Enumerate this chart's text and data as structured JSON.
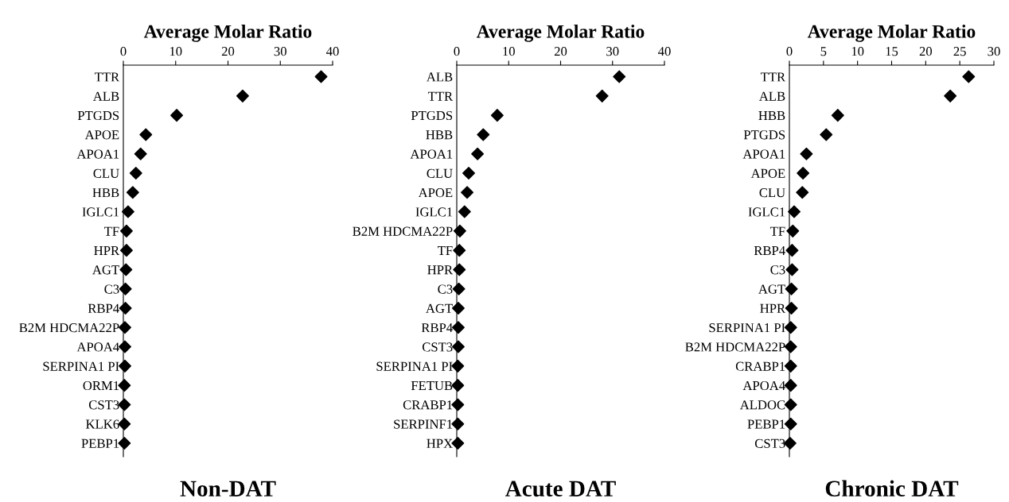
{
  "chart_data": [
    {
      "type": "scatter",
      "orientation": "horizontal",
      "title": "Non-DAT",
      "xlabel": "Average Molar Ratio",
      "marker": "diamond",
      "color": "#000000",
      "xlim": [
        0,
        40
      ],
      "xticks": [
        0,
        10,
        20,
        30,
        40
      ],
      "categories": [
        "TTR",
        "ALB",
        "PTGDS",
        "APOE",
        "APOA1",
        "CLU",
        "HBB",
        "IGLC1",
        "TF",
        "HPR",
        "AGT",
        "C3",
        "RBP4",
        "B2M HDCMA22P",
        "APOA4",
        "SERPINA1 PI",
        "ORM1",
        "CST3",
        "KLK6",
        "PEBP1"
      ],
      "values": [
        37.8,
        22.8,
        10.2,
        4.3,
        3.3,
        2.4,
        1.8,
        0.9,
        0.6,
        0.6,
        0.5,
        0.4,
        0.4,
        0.3,
        0.3,
        0.3,
        0.2,
        0.2,
        0.2,
        0.2
      ]
    },
    {
      "type": "scatter",
      "orientation": "horizontal",
      "title": "Acute DAT",
      "xlabel": "Average Molar Ratio",
      "marker": "diamond",
      "color": "#000000",
      "xlim": [
        0,
        40
      ],
      "xticks": [
        0,
        10,
        20,
        30,
        40
      ],
      "categories": [
        "ALB",
        "TTR",
        "PTGDS",
        "HBB",
        "APOA1",
        "CLU",
        "APOE",
        "IGLC1",
        "B2M HDCMA22P",
        "TF",
        "HPR",
        "C3",
        "AGT",
        "RBP4",
        "CST3",
        "SERPINA1 PI",
        "FETUB",
        "CRABP1",
        "SERPINF1",
        "HPX"
      ],
      "values": [
        31.3,
        28.0,
        7.8,
        5.1,
        4.0,
        2.3,
        2.0,
        1.5,
        0.6,
        0.5,
        0.5,
        0.4,
        0.3,
        0.3,
        0.3,
        0.2,
        0.2,
        0.2,
        0.2,
        0.2
      ]
    },
    {
      "type": "scatter",
      "orientation": "horizontal",
      "title": "Chronic DAT",
      "xlabel": "Average Molar Ratio",
      "marker": "diamond",
      "color": "#000000",
      "xlim": [
        0,
        30
      ],
      "xticks": [
        0,
        5,
        10,
        15,
        20,
        25,
        30
      ],
      "categories": [
        "TTR",
        "ALB",
        "HBB",
        "PTGDS",
        "APOA1",
        "APOE",
        "CLU",
        "IGLC1",
        "TF",
        "RBP4",
        "C3",
        "AGT",
        "HPR",
        "SERPINA1 PI",
        "B2M HDCMA22P",
        "CRABP1",
        "APOA4",
        "ALDOC",
        "PEBP1",
        "CST3"
      ],
      "values": [
        26.3,
        23.6,
        7.1,
        5.4,
        2.5,
        2.0,
        1.9,
        0.7,
        0.5,
        0.4,
        0.4,
        0.3,
        0.3,
        0.2,
        0.2,
        0.2,
        0.2,
        0.2,
        0.2,
        0.1
      ]
    }
  ]
}
